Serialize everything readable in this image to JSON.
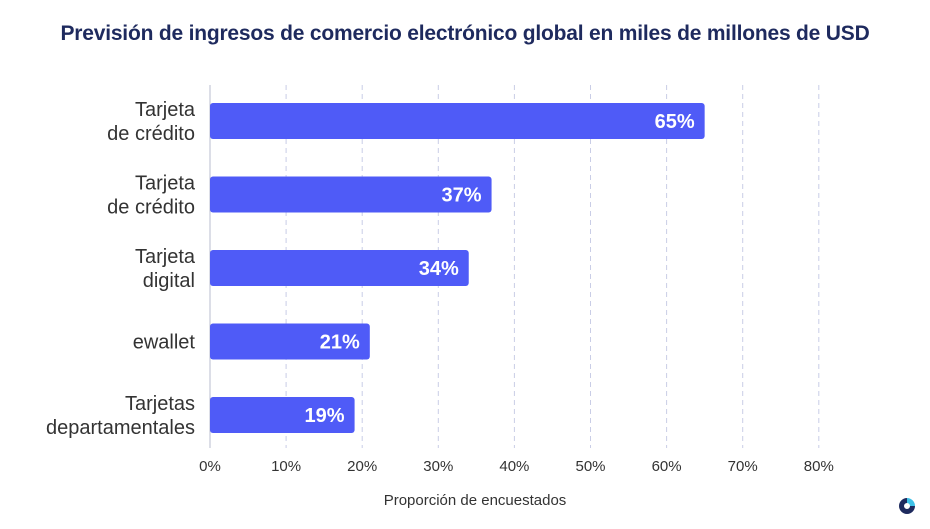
{
  "chart_data": {
    "type": "bar",
    "orientation": "horizontal",
    "title": "Previsión de ingresos de comercio electrónico global en miles de millones de USD",
    "xlabel": "Proporción de encuestados",
    "ylabel": "",
    "categories": [
      [
        "Tarjeta",
        "de crédito"
      ],
      [
        "Tarjeta",
        "de crédito"
      ],
      [
        "Tarjeta",
        "digital"
      ],
      [
        "ewallet"
      ],
      [
        "Tarjetas",
        "departamentales"
      ]
    ],
    "values": [
      65,
      37,
      34,
      21,
      19
    ],
    "value_labels": [
      "65%",
      "37%",
      "34%",
      "21%",
      "19%"
    ],
    "xlim": [
      0,
      80
    ],
    "ticks": [
      "0%",
      "10%",
      "20%",
      "30%",
      "40%",
      "50%",
      "60%",
      "70%",
      "80%"
    ],
    "tick_values": [
      0,
      10,
      20,
      30,
      40,
      50,
      60,
      70,
      80
    ],
    "grid": true,
    "colors": {
      "bar": "#4f5bf7",
      "grid": "#c9cde6",
      "axis": "#b8bccf",
      "title": "#1e2a5e",
      "text": "#333333"
    }
  },
  "logo": {
    "name": "brand-logo-icon"
  }
}
